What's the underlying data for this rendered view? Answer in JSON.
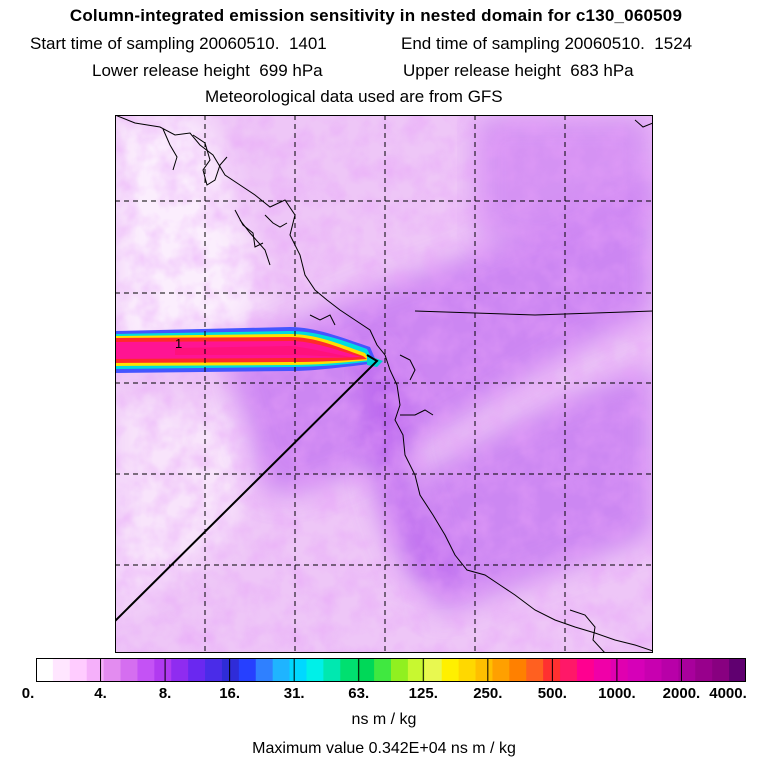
{
  "header": {
    "title": "Column-integrated emission sensitivity in nested domain for c130_060509",
    "start_label": "Start time of sampling 20060510.",
    "start_time": "1401",
    "end_label": "End time of sampling 20060510.",
    "end_time": "1524",
    "lower_label": "Lower release height",
    "lower_value": "699 hPa",
    "upper_label": "Upper release height",
    "upper_value": "683 hPa",
    "met_data": "Meteorological data used are from GFS"
  },
  "map": {
    "plume_label": "1",
    "background_color": "#e8b6f5",
    "plume_colors": [
      "#4455ff",
      "#00dddd",
      "#ffe000",
      "#ff2a2a",
      "#ff1493",
      "#b000c8"
    ]
  },
  "colorbar": {
    "tick_labels": [
      "0.",
      "4.",
      "8.",
      "16.",
      "31.",
      "63.",
      "125.",
      "250.",
      "500.",
      "1000.",
      "2000.",
      "4000."
    ],
    "colors": [
      "#ffffff",
      "#ffe6ff",
      "#ffccff",
      "#f5b0fa",
      "#e38cf0",
      "#d56ef0",
      "#c452f5",
      "#b13af0",
      "#8f2cf0",
      "#6a28f0",
      "#4a2ce8",
      "#2f2cd8",
      "#2640ff",
      "#2f80ff",
      "#1fb4ff",
      "#00d8ff",
      "#00f0e8",
      "#00e8b0",
      "#00e070",
      "#00d858",
      "#40e840",
      "#90f020",
      "#c8f830",
      "#e8f850",
      "#fff000",
      "#ffd800",
      "#ffbf00",
      "#ffa000",
      "#ff8000",
      "#ff6020",
      "#ff3030",
      "#ff1868",
      "#ff0090",
      "#f000a8",
      "#e000b0",
      "#d600b8",
      "#c800b0",
      "#b800a8",
      "#a8009c",
      "#98008c",
      "#880080",
      "#600070"
    ],
    "units": "ns m / kg"
  },
  "footer": {
    "max_value": "Maximum value  0.342E+04 ns m / kg"
  }
}
